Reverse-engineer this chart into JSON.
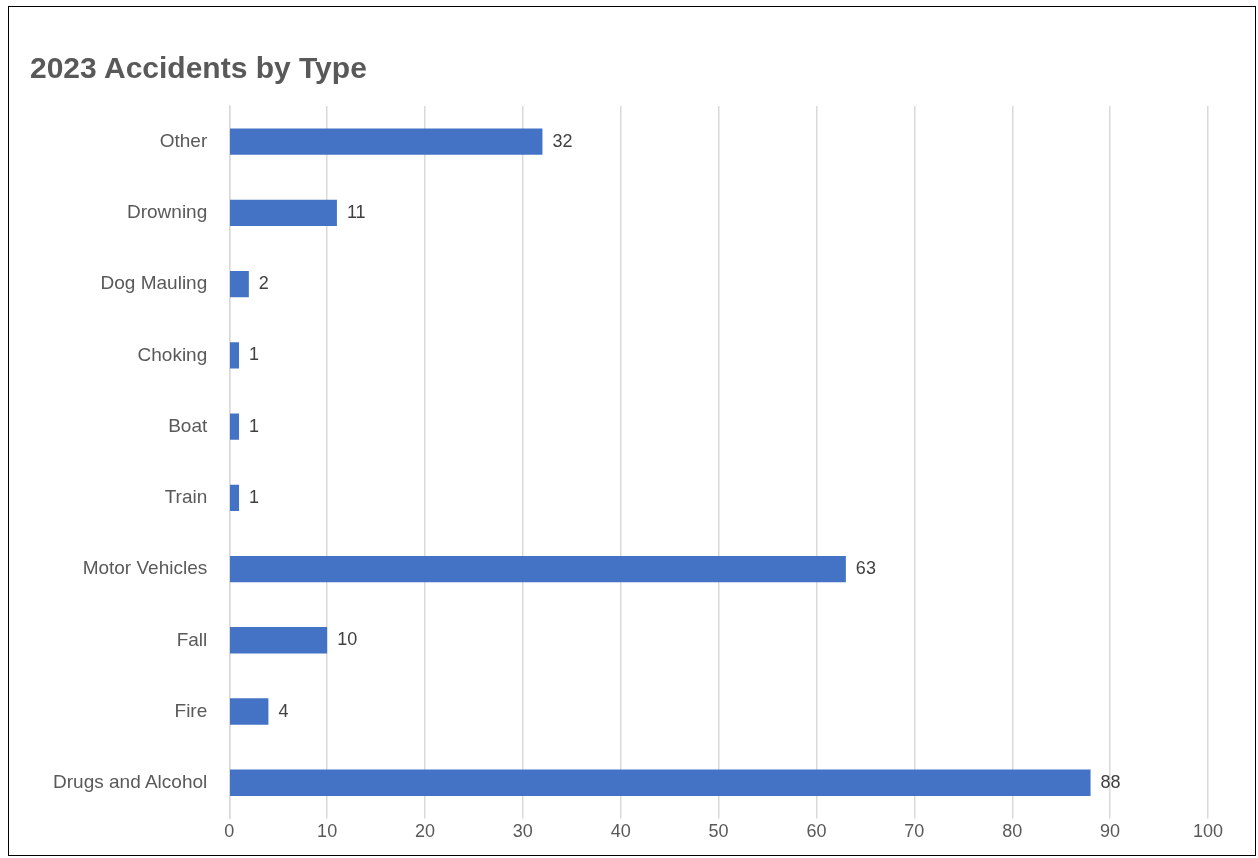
{
  "chart_data": {
    "type": "bar",
    "orientation": "horizontal",
    "title": "2023 Accidents by Type",
    "categories": [
      "Other",
      "Drowning",
      "Dog Mauling",
      "Choking",
      "Boat",
      "Train",
      "Motor Vehicles",
      "Fall",
      "Fire",
      "Drugs and Alcohol"
    ],
    "values": [
      32,
      11,
      2,
      1,
      1,
      1,
      63,
      10,
      4,
      88
    ],
    "color": "#4472c4",
    "xlim": [
      0,
      100
    ],
    "xticks": [
      0,
      10,
      20,
      30,
      40,
      50,
      60,
      70,
      80,
      90,
      100
    ],
    "grid": "x",
    "data_labels": true,
    "legend": false
  }
}
